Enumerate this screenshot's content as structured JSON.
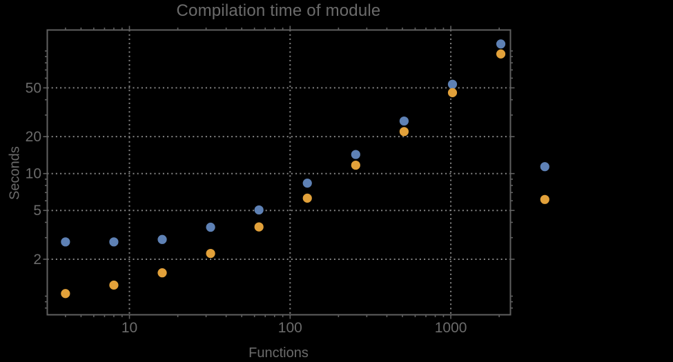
{
  "chart_data": {
    "type": "scatter",
    "title": "Compilation time of module",
    "xlabel": "Functions",
    "ylabel": "Seconds",
    "x_scale": "log",
    "y_scale": "log",
    "x_range": [
      3.08,
      2349
    ],
    "y_range": [
      0.705,
      148
    ],
    "grid": "dotted lines at labeled major ticks",
    "x": [
      4,
      8,
      16,
      32,
      64,
      128,
      256,
      512,
      1024,
      2048
    ],
    "series": [
      {
        "name": "",
        "color": "#5E81B5",
        "values": [
          2.77,
          2.77,
          2.9,
          3.65,
          5.05,
          8.35,
          14.3,
          26.8,
          53.5,
          114
        ]
      },
      {
        "name": "",
        "color": "#E2A13A",
        "values": [
          1.05,
          1.23,
          1.55,
          2.23,
          3.67,
          6.3,
          11.7,
          22.0,
          45.7,
          94.5
        ]
      }
    ],
    "x_ticks": {
      "major": [
        10,
        100,
        1000
      ],
      "major_labels": [
        "10",
        "100",
        "1000"
      ],
      "minor": [
        4,
        5,
        6,
        7,
        8,
        9,
        20,
        30,
        40,
        50,
        60,
        70,
        80,
        90,
        200,
        300,
        400,
        500,
        600,
        700,
        800,
        900,
        2000
      ]
    },
    "y_ticks": {
      "major": [
        2,
        5,
        10,
        20,
        50
      ],
      "major_labels": [
        "2",
        "5",
        "10",
        "20",
        "50"
      ],
      "minor": [
        0.8,
        0.9,
        1,
        3,
        4,
        6,
        7,
        8,
        9,
        30,
        40,
        60,
        70,
        80,
        90,
        100
      ]
    },
    "legend": {
      "position": "right-of-frame",
      "labels_visible": false,
      "marker_colors": [
        "#5E81B5",
        "#E2A13A"
      ]
    }
  },
  "colors": {
    "background": "#000000",
    "frame": "#606060",
    "gridline": "#858585",
    "text": "#6b6b6b"
  }
}
